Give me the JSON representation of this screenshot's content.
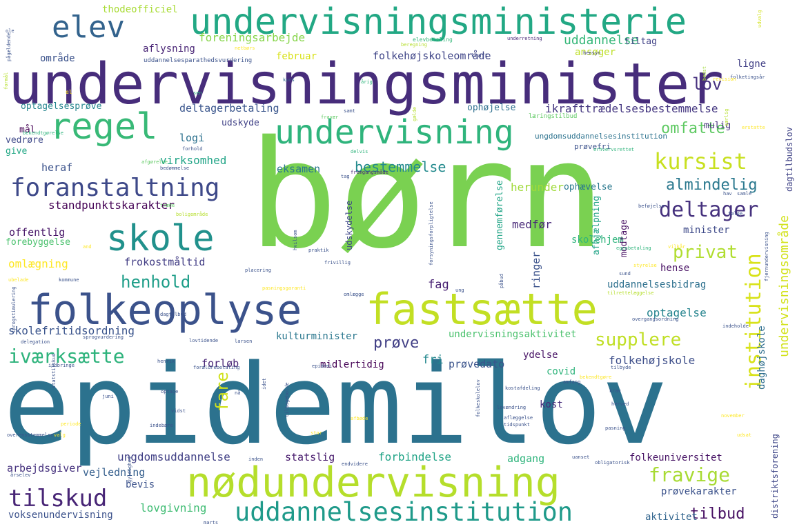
{
  "palette": {
    "background": "#ffffff",
    "dark_purple": "#440154",
    "indigo": "#3e4a89",
    "blue": "#31688e",
    "teal": "#26828e",
    "green_teal": "#1f9e89",
    "green": "#35b779",
    "light_green": "#6ece58",
    "lime": "#b5de2b",
    "yellow": "#fde725"
  },
  "words": [
    {
      "text": "epidemilov",
      "color": "#2c728e"
    },
    {
      "text": "børn",
      "color": "#7ad151"
    },
    {
      "text": "undervisningsminister",
      "color": "#472d7b"
    },
    {
      "text": "undervisningsministerie",
      "color": "#22a884"
    },
    {
      "text": "nødundervisning",
      "color": "#b5de2b"
    },
    {
      "text": "fastsætte",
      "color": "#c2df23"
    },
    {
      "text": "folkeoplyse",
      "color": "#3b528b"
    },
    {
      "text": "undervisning",
      "color": "#2fb47c"
    },
    {
      "text": "regel",
      "color": "#38b977"
    },
    {
      "text": "elev",
      "color": "#33638d"
    },
    {
      "text": "skole",
      "color": "#21918c"
    },
    {
      "text": "uddannelsesinstitution",
      "color": "#1f9a8a"
    },
    {
      "text": "foranstaltning",
      "color": "#3e4989"
    },
    {
      "text": "tilskud",
      "color": "#482576"
    },
    {
      "text": "institution",
      "color": "#d8e219"
    },
    {
      "text": "kursist",
      "color": "#c8e020"
    },
    {
      "text": "iværksætte",
      "color": "#2eb37c"
    },
    {
      "text": "henhold",
      "color": "#1f9e89"
    },
    {
      "text": "deltager",
      "color": "#46327e"
    },
    {
      "text": "fravige",
      "color": "#a8db34"
    },
    {
      "text": "supplere",
      "color": "#c0df25"
    },
    {
      "text": "privat",
      "color": "#b0dd2f"
    },
    {
      "text": "omfatte",
      "color": "#5ec962"
    },
    {
      "text": "almindelig",
      "color": "#2a788e"
    },
    {
      "text": "fare",
      "color": "#d0e11c"
    },
    {
      "text": "tilbud",
      "color": "#471063"
    },
    {
      "text": "prøve",
      "color": "#424086"
    },
    {
      "text": "lov",
      "color": "#46307e"
    },
    {
      "text": "bestemmelse",
      "color": "#238a8d"
    },
    {
      "text": "undervisningsområde",
      "color": "#d2e21b"
    },
    {
      "text": "daghøjskole",
      "color": "#2e6e8e"
    },
    {
      "text": "distriktsforening",
      "color": "#3f4788"
    },
    {
      "text": "dagtilbudslov",
      "color": "#414487"
    },
    {
      "text": "standpunktskarakter",
      "color": "#440154"
    },
    {
      "text": "skolefritidsordning",
      "color": "#3a548c"
    },
    {
      "text": "folkehøjskoleområde",
      "color": "#404688"
    },
    {
      "text": "ikrafttrædelsesbestemmelse",
      "color": "#453781"
    },
    {
      "text": "foreningsarbejde",
      "color": "#86d549"
    },
    {
      "text": "deltagerbetaling",
      "color": "#39558c"
    },
    {
      "text": "optagelsesprøve",
      "color": "#25858e"
    },
    {
      "text": "uddannelse",
      "color": "#35b779"
    },
    {
      "text": "optagelse",
      "color": "#25848e"
    },
    {
      "text": "folkehøjskole",
      "color": "#3d4e8a"
    },
    {
      "text": "ungdomsuddannelse",
      "color": "#424186"
    },
    {
      "text": "forbindelse",
      "color": "#20a386"
    },
    {
      "text": "folkeuniversitet",
      "color": "#471365"
    },
    {
      "text": "uddannelsesbidrag",
      "color": "#2d708e"
    },
    {
      "text": "undervisningsaktivitet",
      "color": "#4ac16d"
    },
    {
      "text": "kulturminister",
      "color": "#2a778e"
    },
    {
      "text": "voksenundervisning",
      "color": "#3b518b"
    },
    {
      "text": "lovgivning",
      "color": "#3fbc73"
    },
    {
      "text": "prøvekarakter",
      "color": "#3b528b"
    },
    {
      "text": "arbejdsgiver",
      "color": "#46327e"
    },
    {
      "text": "vejledning",
      "color": "#355f8d"
    },
    {
      "text": "statslig",
      "color": "#481b6d"
    },
    {
      "text": "adgang",
      "color": "#2fb47c"
    },
    {
      "text": "aktivitet",
      "color": "#32658e"
    },
    {
      "text": "offentlig",
      "color": "#481769"
    },
    {
      "text": "forebyggelse",
      "color": "#4ac16d"
    },
    {
      "text": "omlægning",
      "color": "#fde725"
    },
    {
      "text": "frokostmåltid",
      "color": "#433e85"
    },
    {
      "text": "virksomhed",
      "color": "#20a486"
    },
    {
      "text": "heraf",
      "color": "#3b528b"
    },
    {
      "text": "logi",
      "color": "#2c718e"
    },
    {
      "text": "eksamen",
      "color": "#2a778e"
    },
    {
      "text": "herunder",
      "color": "#a0da39"
    },
    {
      "text": "ophævelse",
      "color": "#2a788e"
    },
    {
      "text": "medfør",
      "color": "#482878"
    },
    {
      "text": "minister",
      "color": "#3e4a89"
    },
    {
      "text": "hense",
      "color": "#471063"
    },
    {
      "text": "skolehjem",
      "color": "#2fb47c"
    },
    {
      "text": "afhjælpning",
      "color": "#20a386"
    },
    {
      "text": "modtage",
      "color": "#471063"
    },
    {
      "text": "ringer",
      "color": "#3b528b"
    },
    {
      "text": "fag",
      "color": "#482173"
    },
    {
      "text": "gennemførelse",
      "color": "#20a486"
    },
    {
      "text": "udskydelse",
      "color": "#3f4788"
    },
    {
      "text": "forløb",
      "color": "#482475"
    },
    {
      "text": "fri",
      "color": "#23888e"
    },
    {
      "text": "prøvedato",
      "color": "#3a538b"
    },
    {
      "text": "midlertidig",
      "color": "#440154"
    },
    {
      "text": "ydelse",
      "color": "#471365"
    },
    {
      "text": "covid",
      "color": "#2fb47c"
    },
    {
      "text": "kost",
      "color": "#472d7b"
    },
    {
      "text": "bevis",
      "color": "#3b528b"
    },
    {
      "text": "mål",
      "color": "#440154"
    },
    {
      "text": "vedrøre",
      "color": "#3e4989"
    },
    {
      "text": "give",
      "color": "#22a785"
    },
    {
      "text": "område",
      "color": "#3b528b"
    },
    {
      "text": "aflysning",
      "color": "#482475"
    },
    {
      "text": "februar",
      "color": "#d8e219"
    },
    {
      "text": "thodeofficiel",
      "color": "#a8db34"
    },
    {
      "text": "ansøger",
      "color": "#bddf26"
    },
    {
      "text": "tiltag",
      "color": "#414287"
    },
    {
      "text": "ligne",
      "color": "#424086"
    },
    {
      "text": "ophøjelse",
      "color": "#2e6f8e"
    },
    {
      "text": "udskyde",
      "color": "#414287"
    },
    {
      "text": "mulig",
      "color": "#46327e"
    },
    {
      "text": "ungdomsuddannelsesinstitution",
      "color": "#2c728e"
    },
    {
      "text": "prøvefri",
      "color": "#3b518b"
    },
    {
      "text": "læringstilbud",
      "color": "#5ec962"
    },
    {
      "text": "uddannelsesparathedsvurdering",
      "color": "#3b528b"
    },
    {
      "text": "elevbetaling",
      "color": "#35b779"
    },
    {
      "text": "beregning",
      "color": "#b5de2b"
    },
    {
      "text": "underretning",
      "color": "#482878"
    },
    {
      "text": "hensyn",
      "color": "#414487"
    },
    {
      "text": "kraft",
      "color": "#3e4a89"
    },
    {
      "text": "folketingsår",
      "color": "#3b528b"
    },
    {
      "text": "revision",
      "color": "#fde725"
    },
    {
      "text": "bedst",
      "color": "#a0da39"
    },
    {
      "text": "udvalg",
      "color": "#d2e21b"
    },
    {
      "text": "netbørs",
      "color": "#fde725"
    },
    {
      "text": "pågældende",
      "color": "#3b528b"
    },
    {
      "text": "ole",
      "color": "#3b528b"
    },
    {
      "text": "formål",
      "color": "#b5de2b"
    },
    {
      "text": "el",
      "color": "#fde725"
    },
    {
      "text": "sen",
      "color": "#2fb47c"
    },
    {
      "text": "kurs",
      "color": "#31688e"
    },
    {
      "text": "årig",
      "color": "#2fb47c"
    },
    {
      "text": "samt",
      "color": "#3b528b"
    },
    {
      "text": "fravær",
      "color": "#5ec962"
    },
    {
      "text": "gælde",
      "color": "#b5de2b"
    },
    {
      "text": "særlig",
      "color": "#b5de2b"
    },
    {
      "text": "erstatte",
      "color": "#fde725"
    },
    {
      "text": "erhvervsrettet",
      "color": "#2fb47c"
    },
    {
      "text": "bekendtgørelse",
      "color": "#2fb47c"
    },
    {
      "text": "forhold",
      "color": "#3b528b"
    },
    {
      "text": "afgørelse",
      "color": "#5ec962"
    },
    {
      "text": "bedømmelse",
      "color": "#3b528b"
    },
    {
      "text": "delvis",
      "color": "#2fb47c"
    },
    {
      "text": "tag",
      "color": "#3b528b"
    },
    {
      "text": "fremgangsmåde",
      "color": "#482878"
    },
    {
      "text": "hav",
      "color": "#3b528b"
    },
    {
      "text": "samle",
      "color": "#3b528b"
    },
    {
      "text": "følge",
      "color": "#3b528b"
    },
    {
      "text": "beføjelse",
      "color": "#3b528b"
    },
    {
      "text": "træde",
      "color": "#5ec962"
    },
    {
      "text": "boligområde",
      "color": "#b5de2b"
    },
    {
      "text": "and",
      "color": "#fde725"
    },
    {
      "text": "hvilsom",
      "color": "#3b528b"
    },
    {
      "text": "praktik",
      "color": "#3b528b"
    },
    {
      "text": "frivillig",
      "color": "#3b528b"
    },
    {
      "text": "placering",
      "color": "#3b528b"
    },
    {
      "text": "forsyningsforpligtelse",
      "color": "#3b528b"
    },
    {
      "text": "egenbetaling",
      "color": "#2fb47c"
    },
    {
      "text": "vilkår",
      "color": "#fde725"
    },
    {
      "text": "styrelse",
      "color": "#fde725"
    },
    {
      "text": "sund",
      "color": "#3b528b"
    },
    {
      "text": "tilrettelæggelse",
      "color": "#b5de2b"
    },
    {
      "text": "fjernundervisning",
      "color": "#3b528b"
    },
    {
      "text": "ubelade",
      "color": "#fde725"
    },
    {
      "text": "kommune",
      "color": "#3b528b"
    },
    {
      "text": "pasningsgaranti",
      "color": "#fde725"
    },
    {
      "text": "omlægge",
      "color": "#3b528b"
    },
    {
      "text": "ung",
      "color": "#3b528b"
    },
    {
      "text": "påbud",
      "color": "#3b528b"
    },
    {
      "text": "sprogstimulering",
      "color": "#3b528b"
    },
    {
      "text": "delegation",
      "color": "#3b528b"
    },
    {
      "text": "sprogvurdering",
      "color": "#3b528b"
    },
    {
      "text": "dagtilbud",
      "color": "#3b528b"
    },
    {
      "text": "lovtidende",
      "color": "#3b528b"
    },
    {
      "text": "larsen",
      "color": "#3b528b"
    },
    {
      "text": "overgangsordning",
      "color": "#3b528b"
    },
    {
      "text": "indeholde",
      "color": "#3b528b"
    },
    {
      "text": "henrik",
      "color": "#3b528b"
    },
    {
      "text": "forældrebetaling",
      "color": "#3b528b"
    },
    {
      "text": "indbringe",
      "color": "#3b528b"
    },
    {
      "text": "statstilskud",
      "color": "#3b528b"
    },
    {
      "text": "epidemi",
      "color": "#3b528b"
    },
    {
      "text": "idet",
      "color": "#3b528b"
    },
    {
      "text": "optage",
      "color": "#3b528b"
    },
    {
      "text": "nå",
      "color": "#3b528b"
    },
    {
      "text": "tilbagebolde",
      "color": "#3b528b"
    },
    {
      "text": "vidst",
      "color": "#3b528b"
    },
    {
      "text": "juni",
      "color": "#3b528b"
    },
    {
      "text": "periode",
      "color": "#fde725"
    },
    {
      "text": "valg",
      "color": "#fde725"
    },
    {
      "text": "indebære",
      "color": "#3b528b"
    },
    {
      "text": "afbøde",
      "color": "#fde725"
    },
    {
      "text": "stor",
      "color": "#fde725"
    },
    {
      "text": "folkeskolelov",
      "color": "#3b528b"
    },
    {
      "text": "lovændring",
      "color": "#3b528b"
    },
    {
      "text": "aflæggelse",
      "color": "#3b528b"
    },
    {
      "text": "tidspunkt",
      "color": "#3b528b"
    },
    {
      "text": "kostafdeling",
      "color": "#3b528b"
    },
    {
      "text": "bekendtgøre",
      "color": "#fde725"
    },
    {
      "text": "omfang",
      "color": "#3b528b"
    },
    {
      "text": "tilbyde",
      "color": "#3b528b"
    },
    {
      "text": "krav",
      "color": "#3b528b"
    },
    {
      "text": "herved",
      "color": "#3b528b"
    },
    {
      "text": "pasning",
      "color": "#3b528b"
    },
    {
      "text": "november",
      "color": "#fde725"
    },
    {
      "text": "udsat",
      "color": "#fde725"
    },
    {
      "text": "overensstemmelse",
      "color": "#3b528b"
    },
    {
      "text": "inden",
      "color": "#3b528b"
    },
    {
      "text": "endvidere",
      "color": "#3b528b"
    },
    {
      "text": "uanset",
      "color": "#3b528b"
    },
    {
      "text": "obligatorisk",
      "color": "#3b528b"
    },
    {
      "text": "årselev",
      "color": "#3b528b"
    },
    {
      "text": "gyldighed",
      "color": "#3b528b"
    },
    {
      "text": "marts",
      "color": "#3b528b"
    }
  ]
}
